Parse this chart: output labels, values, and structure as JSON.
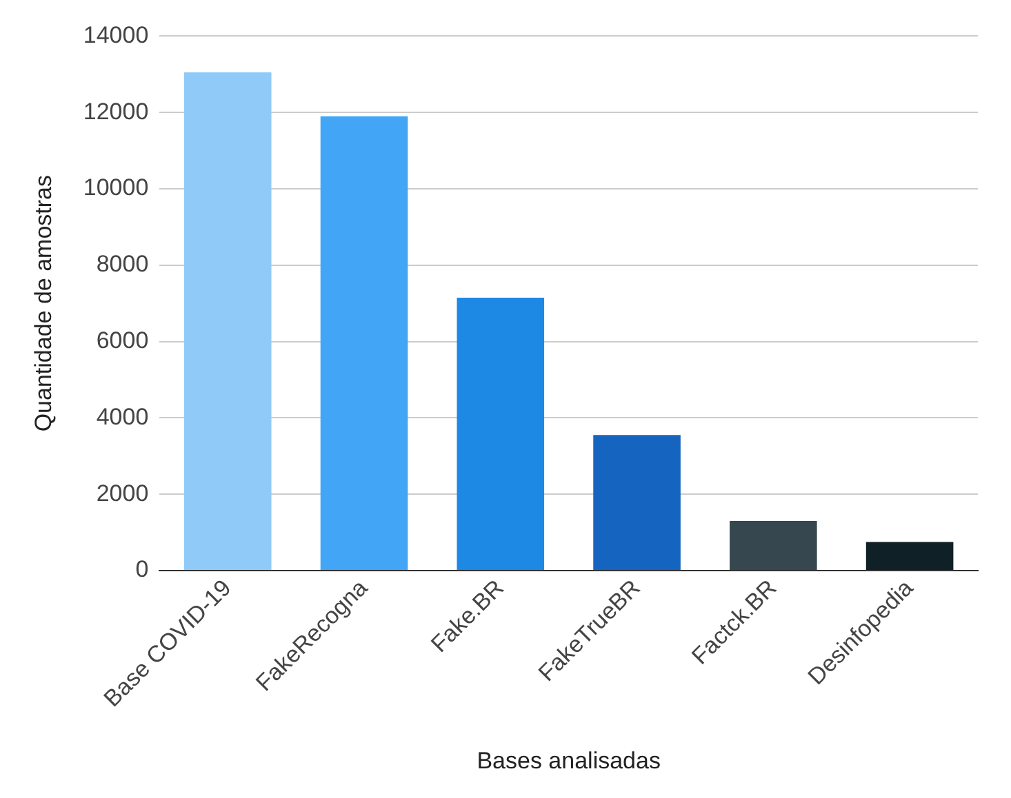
{
  "chart_data": {
    "type": "bar",
    "xlabel": "Bases analisadas",
    "ylabel": "Quantidade de amostras",
    "categories": [
      "Base COVID-19",
      "FakeRecogna",
      "Fake.BR",
      "FakeTrueBR",
      "Factck.BR",
      "Desinfopedia"
    ],
    "values": [
      13050,
      11900,
      7150,
      3550,
      1300,
      750
    ],
    "colors": [
      "#90caf9",
      "#42a5f5",
      "#1e88e5",
      "#1565c0",
      "#37474f",
      "#102027"
    ],
    "ylim": [
      0,
      14000
    ],
    "yticks": [
      0,
      2000,
      4000,
      6000,
      8000,
      10000,
      12000,
      14000
    ],
    "grid": "y",
    "legend": false
  }
}
